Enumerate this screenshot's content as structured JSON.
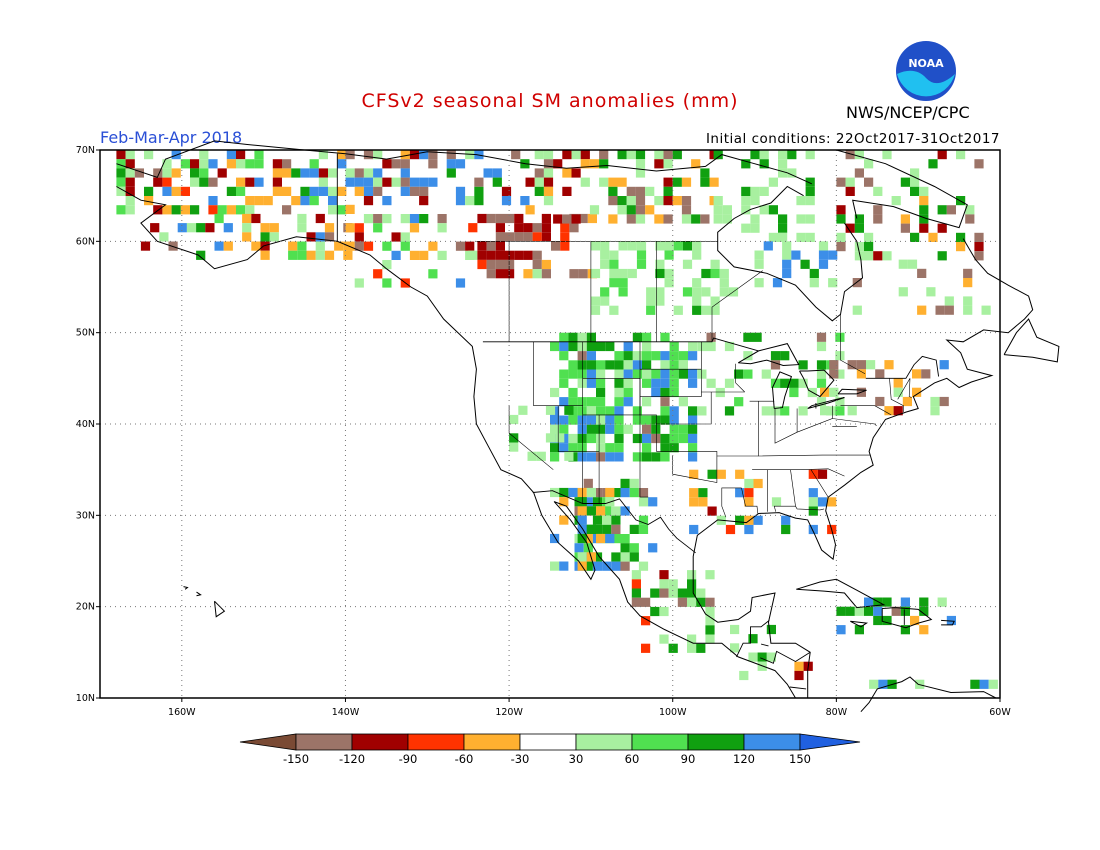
{
  "title": "CFSv2 seasonal SM anomalies (mm)",
  "period": "Feb-Mar-Apr 2018",
  "initial_conditions": "Initial conditions: 22Oct2017-31Oct2017",
  "agency": "NWS/NCEP/CPC",
  "logo_text": "NOAA",
  "map": {
    "lon_ticks": [
      "160W",
      "140W",
      "120W",
      "100W",
      "80W",
      "60W"
    ],
    "lat_ticks": [
      "70N",
      "60N",
      "50N",
      "40N",
      "30N",
      "20N",
      "10N"
    ],
    "lon_range": [
      -170,
      -60
    ],
    "lat_range": [
      10,
      70
    ]
  },
  "legend": {
    "labels": [
      "-150",
      "-120",
      "-90",
      "-60",
      "-30",
      "30",
      "60",
      "90",
      "120",
      "150"
    ],
    "colors": [
      "#7a4a34",
      "#9c7468",
      "#a00000",
      "#ff3300",
      "#ffb030",
      "#ffffff",
      "#a8f0a0",
      "#50e050",
      "#10a010",
      "#3c8ee8",
      "#2060e0"
    ]
  }
}
